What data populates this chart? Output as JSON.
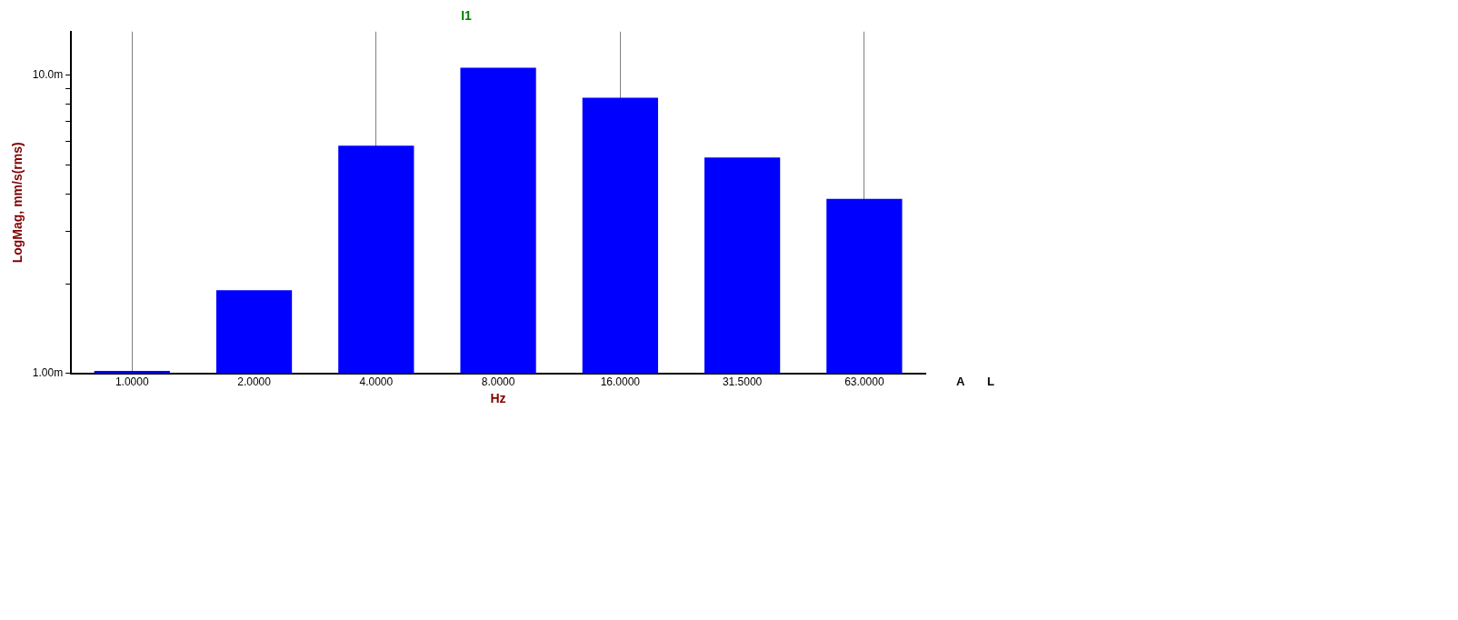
{
  "chart_data": {
    "type": "bar",
    "title": "I1",
    "xlabel": "Hz",
    "ylabel": "LogMag, mm/s(rms)",
    "categories": [
      "1.0000",
      "2.0000",
      "4.0000",
      "8.0000",
      "16.0000",
      "31.5000",
      "63.0000"
    ],
    "values": [
      1.02,
      1.9,
      5.8,
      10.6,
      8.4,
      5.3,
      3.85
    ],
    "color": "#0000ff",
    "log": "y",
    "ylim": [
      1,
      14
    ],
    "yticks": [
      {
        "value": 1,
        "label": "1.00m"
      },
      {
        "value": 2,
        "label": null
      },
      {
        "value": 3,
        "label": null
      },
      {
        "value": 4,
        "label": null
      },
      {
        "value": 5,
        "label": null
      },
      {
        "value": 6,
        "label": null
      },
      {
        "value": 7,
        "label": null
      },
      {
        "value": 8,
        "label": null
      },
      {
        "value": 9,
        "label": null
      },
      {
        "value": 10,
        "label": "10.0m"
      }
    ],
    "grid": "x",
    "legend": false,
    "annotations": [
      "A",
      "L"
    ]
  }
}
